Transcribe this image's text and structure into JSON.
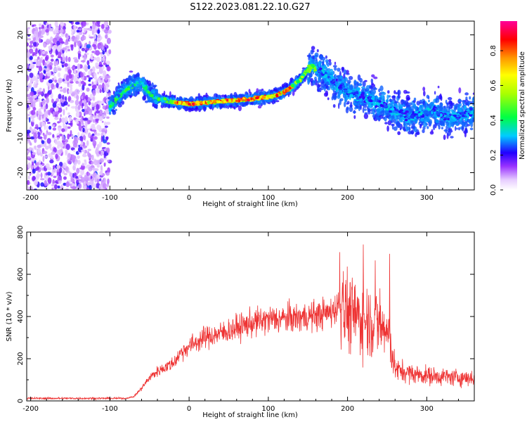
{
  "title": "S122.2023.081.22.10.G27",
  "chart_data": [
    {
      "type": "heatmap",
      "name": "spectrogram",
      "xlabel": "Height of straight line (km)",
      "ylabel": "Frequency (Hz)",
      "xlim": [
        -205,
        360
      ],
      "ylim": [
        -25,
        24
      ],
      "xticks": [
        -200,
        -100,
        0,
        100,
        200,
        300
      ],
      "yticks": [
        -20,
        -10,
        0,
        10,
        20
      ],
      "colorbar": {
        "label": "Normalized spectral amplitude",
        "range": [
          0.0,
          0.97
        ],
        "ticks": [
          0.0,
          0.2,
          0.4,
          0.6,
          0.8
        ]
      },
      "ridge": {
        "x": [
          -100,
          -90,
          -80,
          -70,
          -60,
          -50,
          -40,
          -20,
          0,
          20,
          40,
          60,
          80,
          100,
          110,
          120,
          130,
          140,
          150,
          155,
          160,
          170,
          180,
          190,
          200,
          210,
          220,
          230,
          240,
          250,
          260,
          270,
          280,
          290,
          300,
          310,
          320,
          330,
          340,
          350,
          360
        ],
        "y": [
          -1,
          2,
          4,
          5.5,
          6,
          3,
          1.5,
          0.5,
          0,
          0.3,
          0.7,
          1,
          1.5,
          2,
          2.5,
          3.5,
          5,
          7,
          10,
          11,
          10,
          9,
          7,
          5,
          3.5,
          2.5,
          2,
          1,
          0,
          -1,
          -2,
          -3,
          -4,
          -3,
          -2.5,
          -2,
          -3.5,
          -4,
          -3.5,
          -3,
          -2.5
        ]
      }
    },
    {
      "type": "line",
      "name": "snr",
      "xlabel": "Height of straight line (km)",
      "ylabel": "SNR (10 * v/v)",
      "xlim": [
        -205,
        360
      ],
      "ylim": [
        0,
        800
      ],
      "xticks": [
        -200,
        -100,
        0,
        100,
        200,
        300
      ],
      "yticks": [
        0,
        200,
        400,
        600,
        800
      ],
      "color": "#ee3333",
      "envelope": {
        "x": [
          -205,
          -80,
          -70,
          -60,
          -50,
          -40,
          -30,
          -20,
          -10,
          0,
          10,
          20,
          40,
          60,
          80,
          100,
          120,
          140,
          160,
          180,
          190,
          200,
          210,
          220,
          230,
          240,
          250,
          255,
          260,
          270,
          280,
          300,
          320,
          340,
          360
        ],
        "y": [
          12,
          12,
          20,
          60,
          110,
          140,
          160,
          180,
          230,
          260,
          280,
          300,
          320,
          345,
          370,
          385,
          390,
          395,
          405,
          420,
          460,
          430,
          400,
          390,
          380,
          360,
          320,
          260,
          150,
          140,
          130,
          120,
          115,
          110,
          110
        ]
      }
    }
  ]
}
